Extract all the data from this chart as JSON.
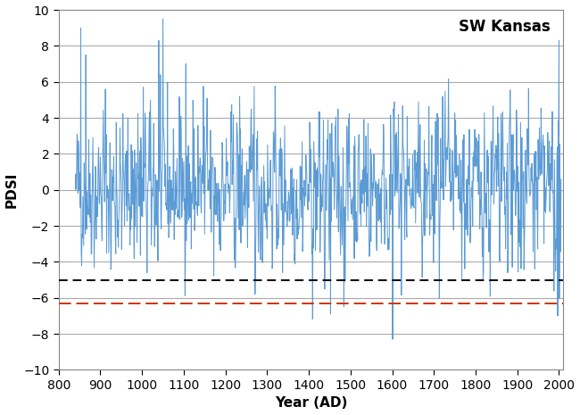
{
  "title": "",
  "xlabel": "Year (AD)",
  "ylabel": "PDSI",
  "annotation": "SW Kansas",
  "xlim": [
    800,
    2010
  ],
  "ylim": [
    -10,
    10
  ],
  "xticks": [
    800,
    900,
    1000,
    1100,
    1200,
    1300,
    1400,
    1500,
    1600,
    1700,
    1800,
    1900,
    2000
  ],
  "yticks": [
    -10,
    -8,
    -6,
    -4,
    -2,
    0,
    2,
    4,
    6,
    8,
    10
  ],
  "line_color": "#5B9BD5",
  "line_width": 0.7,
  "black_dashed_y": -5.0,
  "red_dashed_y": -6.3,
  "black_dashed_color": "#000000",
  "red_dashed_color": "#CC3300",
  "dashed_linewidth": 1.4,
  "grid_color": "#AAAAAA",
  "grid_linewidth": 0.8,
  "spine_color": "#888888",
  "background_color": "#FFFFFF",
  "seed": 42,
  "tick_fontsize": 10,
  "label_fontsize": 11,
  "annotation_fontsize": 12
}
